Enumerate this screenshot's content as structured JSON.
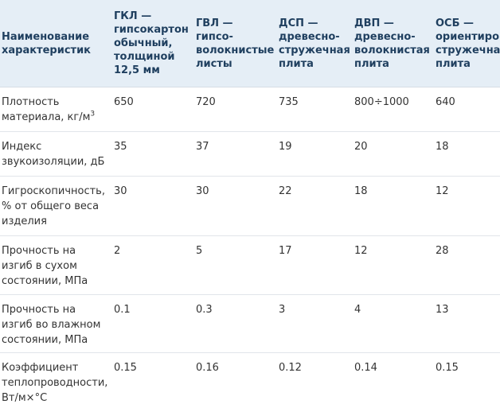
{
  "header": {
    "col0": [
      "Наименование",
      "характеристик"
    ],
    "col1": [
      "ГКЛ —",
      "гипсокартон",
      "обычный,",
      "толщиной",
      "12,5 мм"
    ],
    "col2": [
      "ГВЛ —",
      "гипсо-",
      "волокнистые",
      "листы"
    ],
    "col3": [
      "ДСП —",
      "древесно-",
      "стружечная",
      "плита"
    ],
    "col4": [
      "ДВП —",
      "древесно-",
      "волокнистая",
      "плита"
    ],
    "col5": [
      "ОСБ —",
      "ориентиров",
      "стружечная",
      "плита"
    ]
  },
  "rows": [
    {
      "name": [
        "Плотность",
        "материала, кг/м"
      ],
      "name_sup": "3",
      "values": [
        "650",
        "720",
        "735",
        "800÷1000",
        "640"
      ]
    },
    {
      "name": [
        "Индекс",
        "звукоизоляции, дБ"
      ],
      "values": [
        "35",
        "37",
        "19",
        "20",
        "18"
      ]
    },
    {
      "name": [
        "Гигроскопичность,",
        "% от общего веса",
        "изделия"
      ],
      "values": [
        "30",
        "30",
        "22",
        "18",
        "12"
      ]
    },
    {
      "name": [
        "Прочность на",
        "изгиб в сухом",
        "состоянии, МПа"
      ],
      "values": [
        "2",
        "5",
        "17",
        "12",
        "28"
      ]
    },
    {
      "name": [
        "Прочность на",
        "изгиб во влажном",
        "состоянии, МПа"
      ],
      "values": [
        "0.1",
        "0.3",
        "3",
        "4",
        "13"
      ]
    },
    {
      "name": [
        "Коэффициент",
        "теплопроводности,",
        "Вт/м×°С"
      ],
      "values": [
        "0.15",
        "0.16",
        "0.12",
        "0.14",
        "0.15"
      ]
    }
  ],
  "colors": {
    "header_bg": "#e5eef6",
    "header_text": "#1f3f5f",
    "row_border": "#e1e5ea"
  }
}
